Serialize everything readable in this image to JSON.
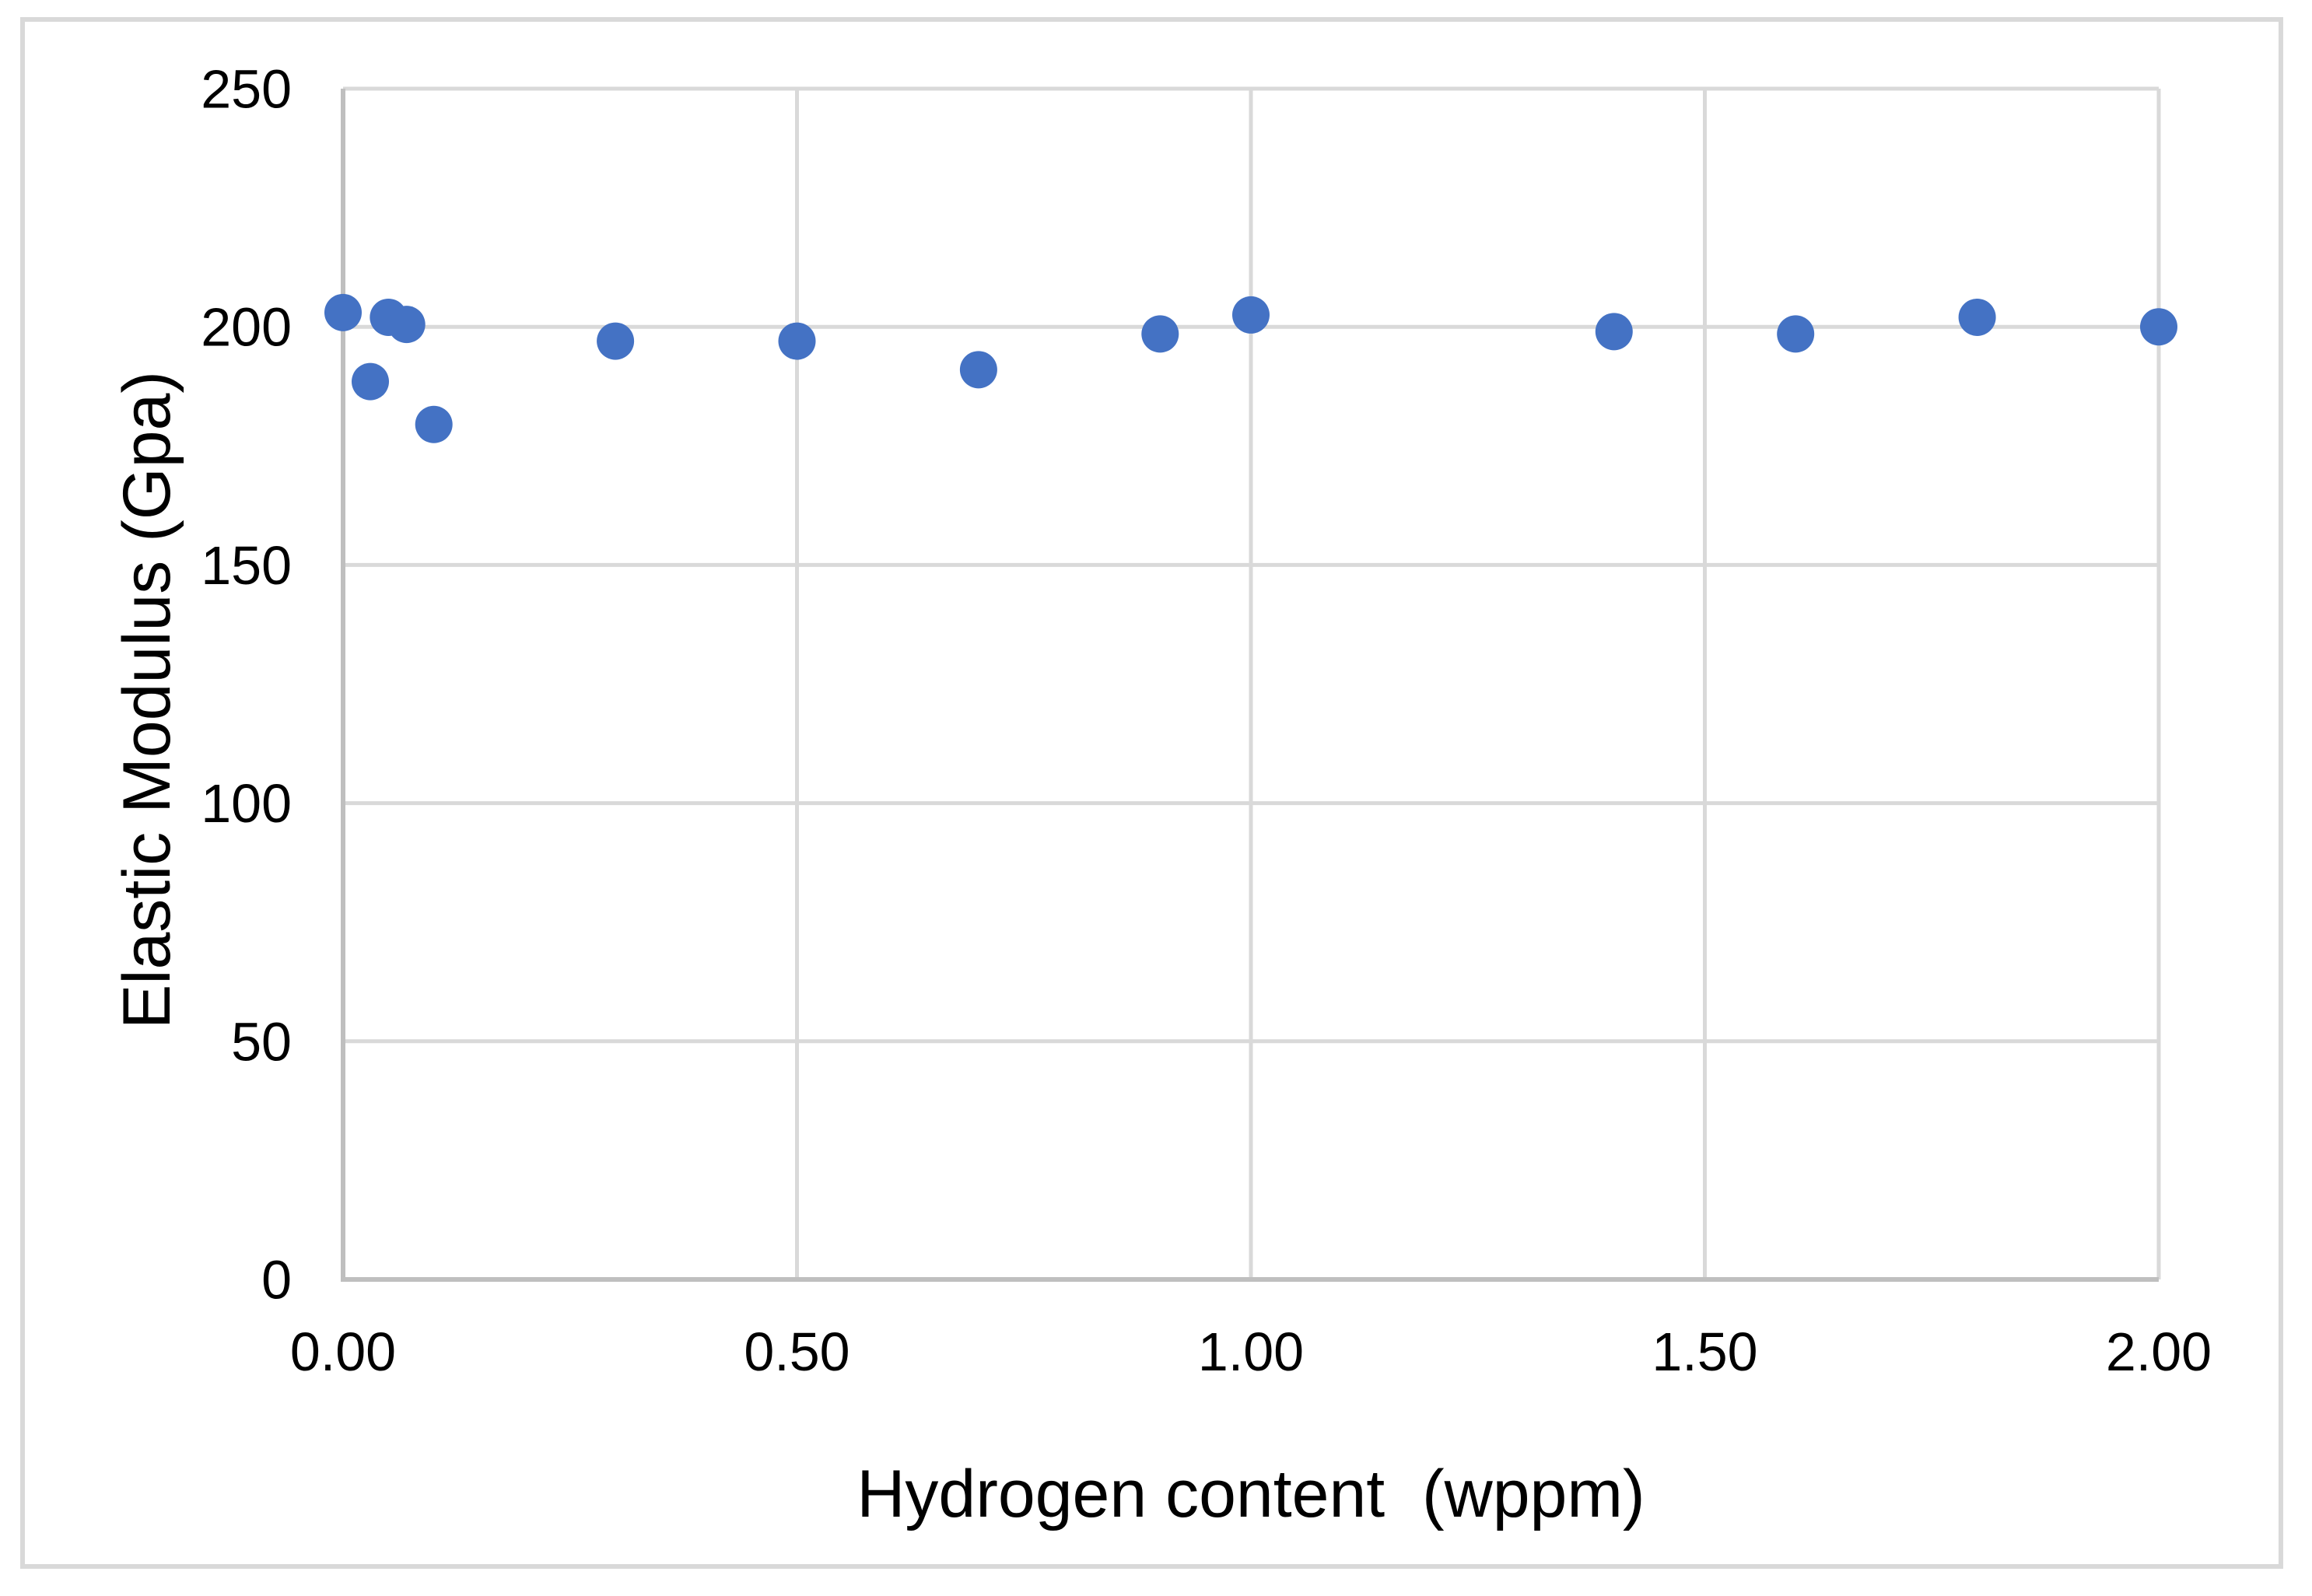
{
  "figure": {
    "background": "#FFFFFF",
    "border_color": "#D9D9D9"
  },
  "chart_data": {
    "type": "scatter",
    "title": "",
    "xlabel": "Hydrogen content  (wppm)",
    "ylabel": "Elastic Modulus (Gpa)",
    "xlim": [
      0,
      2
    ],
    "ylim": [
      0,
      250
    ],
    "x_tick_values": [
      0,
      0.5,
      1,
      1.5,
      2
    ],
    "x_tick_labels": [
      "0.00",
      "0.50",
      "1.00",
      "1.50",
      "2.00"
    ],
    "y_tick_values": [
      0,
      50,
      100,
      150,
      200,
      250
    ],
    "y_tick_labels": [
      "0",
      "50",
      "100",
      "150",
      "200",
      "250"
    ],
    "grid": "on",
    "legend": "none",
    "marker": {
      "shape": "circle",
      "color": "#4472C4",
      "radius_px": 24
    },
    "colors": {
      "gridline": "#D9D9D9",
      "axis_line": "#BFBFBF",
      "text": "#000000"
    },
    "series": [
      {
        "name": "elastic-modulus-vs-hydrogen",
        "points": [
          {
            "x": 0.0,
            "y": 203
          },
          {
            "x": 0.03,
            "y": 188.5
          },
          {
            "x": 0.05,
            "y": 202
          },
          {
            "x": 0.07,
            "y": 200.5
          },
          {
            "x": 0.1,
            "y": 179.5
          },
          {
            "x": 0.3,
            "y": 197
          },
          {
            "x": 0.5,
            "y": 197
          },
          {
            "x": 0.7,
            "y": 191
          },
          {
            "x": 0.9,
            "y": 198.5
          },
          {
            "x": 1.0,
            "y": 202.5
          },
          {
            "x": 1.4,
            "y": 199
          },
          {
            "x": 1.6,
            "y": 198.5
          },
          {
            "x": 1.8,
            "y": 202
          },
          {
            "x": 2.0,
            "y": 200
          }
        ]
      }
    ]
  }
}
